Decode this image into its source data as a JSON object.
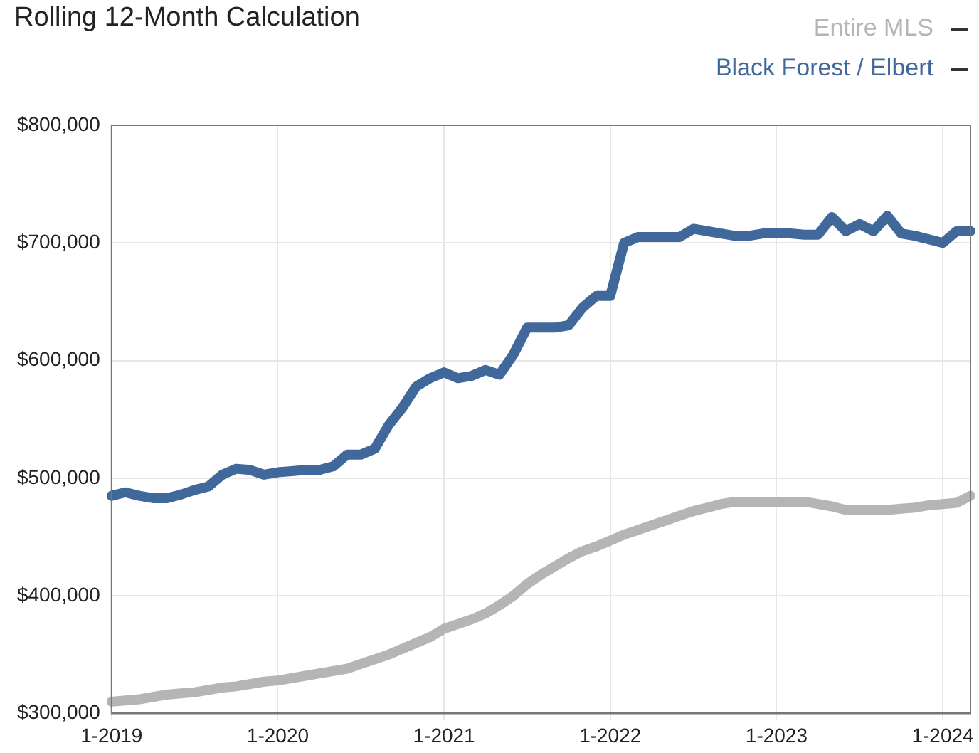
{
  "chart_data": {
    "type": "line",
    "title": "Rolling 12-Month Calculation",
    "categories": [
      "1-2019",
      null,
      null,
      null,
      null,
      null,
      null,
      null,
      null,
      null,
      null,
      null,
      "1-2020",
      null,
      null,
      null,
      null,
      null,
      null,
      null,
      null,
      null,
      null,
      null,
      "1-2021",
      null,
      null,
      null,
      null,
      null,
      null,
      null,
      null,
      null,
      null,
      null,
      "1-2022",
      null,
      null,
      null,
      null,
      null,
      null,
      null,
      null,
      null,
      null,
      null,
      "1-2023",
      null,
      null,
      null,
      null,
      null,
      null,
      null,
      null,
      null,
      null,
      null,
      "1-2024",
      null,
      null
    ],
    "series": [
      {
        "name": "Entire MLS",
        "color": "#b5b5b5",
        "values": [
          310000,
          311000,
          312000,
          314000,
          316000,
          317000,
          318000,
          320000,
          322000,
          323000,
          325000,
          327000,
          328000,
          330000,
          332000,
          334000,
          336000,
          338000,
          342000,
          346000,
          350000,
          355000,
          360000,
          365000,
          372000,
          376000,
          380000,
          385000,
          392000,
          400000,
          410000,
          418000,
          425000,
          432000,
          438000,
          442000,
          447000,
          452000,
          456000,
          460000,
          464000,
          468000,
          472000,
          475000,
          478000,
          480000,
          480000,
          480000,
          480000,
          480000,
          480000,
          478000,
          476000,
          473000,
          473000,
          473000,
          473000,
          474000,
          475000,
          477000,
          478000,
          479000,
          485000
        ]
      },
      {
        "name": "Black Forest / Elbert",
        "color": "#41689b",
        "values": [
          485000,
          488000,
          485000,
          483000,
          483000,
          486000,
          490000,
          493000,
          503000,
          508000,
          507000,
          503000,
          505000,
          506000,
          507000,
          507000,
          510000,
          520000,
          520000,
          525000,
          545000,
          560000,
          578000,
          585000,
          590000,
          585000,
          587000,
          592000,
          588000,
          605000,
          628000,
          628000,
          628000,
          630000,
          645000,
          655000,
          655000,
          700000,
          705000,
          705000,
          705000,
          705000,
          712000,
          710000,
          708000,
          706000,
          706000,
          708000,
          708000,
          708000,
          707000,
          707000,
          722000,
          710000,
          716000,
          710000,
          723000,
          708000,
          706000,
          703000,
          700000,
          710000,
          710000
        ]
      }
    ],
    "ylim": [
      300000,
      800000
    ],
    "yticks": [
      {
        "value": 300000,
        "label": "$300,000"
      },
      {
        "value": 400000,
        "label": "$400,000"
      },
      {
        "value": 500000,
        "label": "$500,000"
      },
      {
        "value": 600000,
        "label": "$600,000"
      },
      {
        "value": 700000,
        "label": "$700,000"
      },
      {
        "value": 800000,
        "label": "$800,000"
      }
    ],
    "grid": true,
    "legend": "top right",
    "marker": "none",
    "line_style": "solid"
  }
}
